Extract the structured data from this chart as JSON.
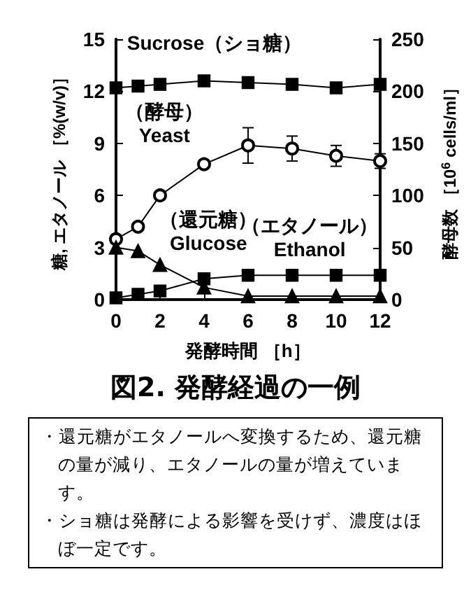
{
  "chart_data": {
    "type": "line",
    "title": "図2. 発酵経過の一例",
    "xlabel": "発酵時間 ［h］",
    "ylabel": "糖, エタノール ［%(w/v)］",
    "y2label": "酵母数 ［10$^{6}$ cells/ml］",
    "x": [
      0,
      1,
      2,
      4,
      6,
      8,
      10,
      12
    ],
    "xlim": [
      0,
      12
    ],
    "xticks": [
      0,
      2,
      4,
      6,
      8,
      10,
      12
    ],
    "ylim": [
      0,
      15
    ],
    "yticks": [
      0,
      3,
      6,
      9,
      12,
      15
    ],
    "y2lim": [
      0,
      250
    ],
    "y2ticks": [
      0,
      50,
      100,
      150,
      200,
      250
    ],
    "grid": false,
    "legend": false,
    "line_style": "solid",
    "series": [
      {
        "name": "Sucrose（ショ糖）",
        "color": "#000000",
        "marker": "square",
        "values": [
          12.2,
          12.3,
          12.4,
          12.6,
          12.5,
          12.4,
          12.2,
          12.4
        ]
      },
      {
        "name": "（酵母）\nYeast",
        "color": "#000000",
        "marker": "circle",
        "axis": "y2",
        "values": [
          58,
          70,
          100,
          130,
          148,
          145,
          138,
          133
        ],
        "errors": [
          null,
          null,
          null,
          null,
          17,
          12,
          10,
          7
        ]
      },
      {
        "name": "（還元糖）\nGlucose",
        "color": "#000000",
        "marker": "triangle",
        "values": [
          3.0,
          2.8,
          2.0,
          0.7,
          0.2,
          0.2,
          0.2,
          0.2
        ],
        "errors": [
          0.3,
          null,
          null,
          null,
          null,
          null,
          null,
          null
        ]
      },
      {
        "name": "（エタノール）\nEthanol",
        "color": "#000000",
        "marker": "square",
        "values": [
          0.1,
          0.3,
          0.5,
          1.2,
          1.4,
          1.4,
          1.4,
          1.4
        ]
      }
    ],
    "annotations": [
      "・還元糖がエタノールへ変換するため、還元糖の量が減り、エタノールの量が増えています。",
      "・ショ糖は発酵による影響を受けず、濃度はほぼ一定です。"
    ]
  }
}
